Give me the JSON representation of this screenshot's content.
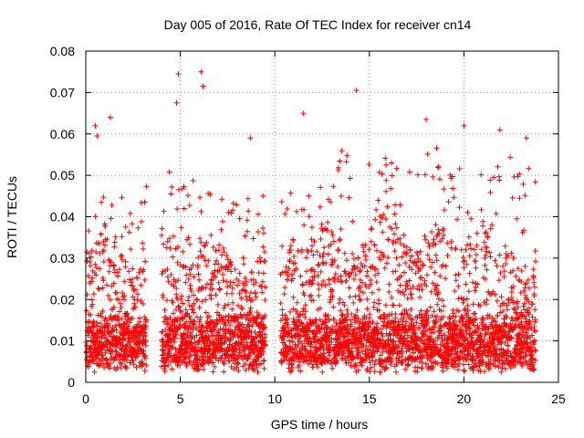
{
  "chart_data": {
    "type": "scatter",
    "title": "Day 005 of 2016, Rate Of TEC Index for receiver cn14",
    "xlabel": "GPS time / hours",
    "ylabel": "ROTI / TECUs",
    "xlim": [
      0,
      25
    ],
    "ylim": [
      0,
      0.08
    ],
    "x_ticks": [
      0,
      5,
      10,
      15,
      20,
      25
    ],
    "x_tick_labels": [
      "0",
      "5",
      "10",
      "15",
      "20",
      "25"
    ],
    "y_ticks": [
      0,
      0.01,
      0.02,
      0.03,
      0.04,
      0.05,
      0.06,
      0.07,
      0.08
    ],
    "y_tick_labels": [
      "0",
      "0.01",
      "0.02",
      "0.03",
      "0.04",
      "0.05",
      "0.06",
      "0.07",
      "0.08"
    ],
    "grid": true,
    "marker": "+",
    "color": "#ff0000",
    "data_gaps_hours": [
      [
        3.2,
        4.0
      ],
      [
        9.5,
        10.3
      ]
    ],
    "baseline_range": [
      0.004,
      0.015
    ],
    "notable_points": [
      {
        "x": 0.5,
        "y": 0.062
      },
      {
        "x": 0.6,
        "y": 0.0595
      },
      {
        "x": 1.3,
        "y": 0.064
      },
      {
        "x": 4.8,
        "y": 0.0675
      },
      {
        "x": 4.9,
        "y": 0.0745
      },
      {
        "x": 6.1,
        "y": 0.075
      },
      {
        "x": 6.2,
        "y": 0.0715
      },
      {
        "x": 8.7,
        "y": 0.059
      },
      {
        "x": 11.5,
        "y": 0.065
      },
      {
        "x": 14.3,
        "y": 0.0705
      },
      {
        "x": 18.0,
        "y": 0.0635
      },
      {
        "x": 20.0,
        "y": 0.062
      },
      {
        "x": 21.9,
        "y": 0.061
      },
      {
        "x": 23.3,
        "y": 0.059
      }
    ],
    "activity_peaks": [
      {
        "x": 0.5,
        "y": 0.045
      },
      {
        "x": 1.4,
        "y": 0.046
      },
      {
        "x": 2.6,
        "y": 0.046
      },
      {
        "x": 4.5,
        "y": 0.053
      },
      {
        "x": 6.6,
        "y": 0.046
      },
      {
        "x": 9.0,
        "y": 0.044
      },
      {
        "x": 11.6,
        "y": 0.052
      },
      {
        "x": 13.0,
        "y": 0.058
      },
      {
        "x": 14.6,
        "y": 0.055
      },
      {
        "x": 16.8,
        "y": 0.055
      },
      {
        "x": 18.2,
        "y": 0.058
      },
      {
        "x": 20.8,
        "y": 0.05
      },
      {
        "x": 22.0,
        "y": 0.058
      },
      {
        "x": 23.4,
        "y": 0.052
      }
    ]
  }
}
